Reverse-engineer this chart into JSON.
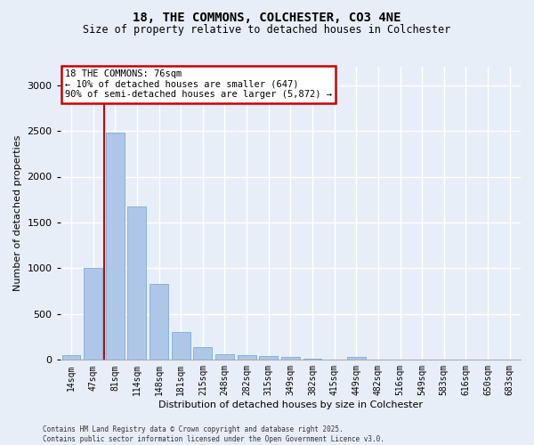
{
  "title_line1": "18, THE COMMONS, COLCHESTER, CO3 4NE",
  "title_line2": "Size of property relative to detached houses in Colchester",
  "xlabel": "Distribution of detached houses by size in Colchester",
  "ylabel": "Number of detached properties",
  "categories": [
    "14sqm",
    "47sqm",
    "81sqm",
    "114sqm",
    "148sqm",
    "181sqm",
    "215sqm",
    "248sqm",
    "282sqm",
    "315sqm",
    "349sqm",
    "382sqm",
    "415sqm",
    "449sqm",
    "482sqm",
    "516sqm",
    "549sqm",
    "583sqm",
    "616sqm",
    "650sqm",
    "683sqm"
  ],
  "values": [
    50,
    1000,
    2480,
    1670,
    830,
    300,
    140,
    60,
    55,
    40,
    30,
    15,
    0,
    30,
    0,
    0,
    0,
    0,
    0,
    0,
    0
  ],
  "bar_color": "#aec6e8",
  "bar_edge_color": "#7aadd4",
  "vline_x": 1.5,
  "vline_color": "#cc0000",
  "annotation_title": "18 THE COMMONS: 76sqm",
  "annotation_line2": "← 10% of detached houses are smaller (647)",
  "annotation_line3": "90% of semi-detached houses are larger (5,872) →",
  "annotation_box_facecolor": "#ffffff",
  "annotation_box_edgecolor": "#cc0000",
  "ylim": [
    0,
    3200
  ],
  "yticks": [
    0,
    500,
    1000,
    1500,
    2000,
    2500,
    3000
  ],
  "background_color": "#e8eef8",
  "grid_color": "#ffffff",
  "footer_line1": "Contains HM Land Registry data © Crown copyright and database right 2025.",
  "footer_line2": "Contains public sector information licensed under the Open Government Licence v3.0."
}
